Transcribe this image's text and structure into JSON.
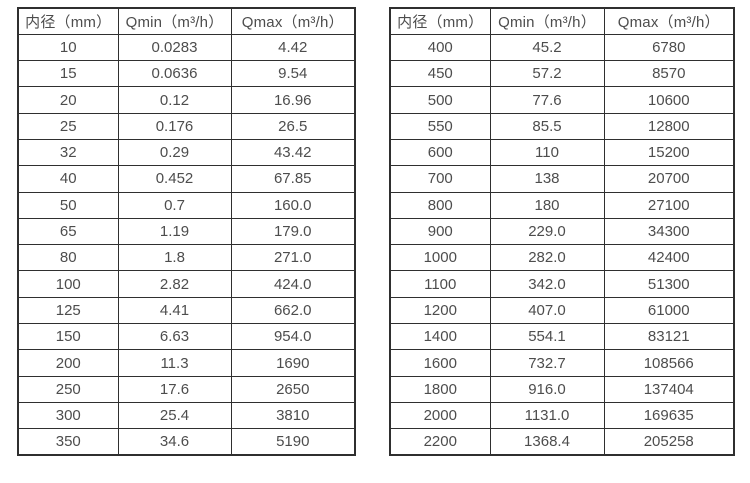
{
  "colors": {
    "background": "#ffffff",
    "table_border": "#2f2f2f",
    "text": "#4d4d4d"
  },
  "tables": [
    {
      "name": "flow-range-table-small-diameters",
      "headers": [
        "内径（mm）",
        "Qmin（m³/h）",
        "Qmax（m³/h）"
      ],
      "rows": [
        [
          "10",
          "0.0283",
          "4.42"
        ],
        [
          "15",
          "0.0636",
          "9.54"
        ],
        [
          "20",
          "0.12",
          "16.96"
        ],
        [
          "25",
          "0.176",
          "26.5"
        ],
        [
          "32",
          "0.29",
          "43.42"
        ],
        [
          "40",
          "0.452",
          "67.85"
        ],
        [
          "50",
          "0.7",
          "160.0"
        ],
        [
          "65",
          "1.19",
          "179.0"
        ],
        [
          "80",
          "1.8",
          "271.0"
        ],
        [
          "100",
          "2.82",
          "424.0"
        ],
        [
          "125",
          "4.41",
          "662.0"
        ],
        [
          "150",
          "6.63",
          "954.0"
        ],
        [
          "200",
          "11.3",
          "1690"
        ],
        [
          "250",
          "17.6",
          "2650"
        ],
        [
          "300",
          "25.4",
          "3810"
        ],
        [
          "350",
          "34.6",
          "5190"
        ]
      ]
    },
    {
      "name": "flow-range-table-large-diameters",
      "headers": [
        "内径（mm）",
        "Qmin（m³/h）",
        "Qmax（m³/h）"
      ],
      "rows": [
        [
          "400",
          "45.2",
          "6780"
        ],
        [
          "450",
          "57.2",
          "8570"
        ],
        [
          "500",
          "77.6",
          "10600"
        ],
        [
          "550",
          "85.5",
          "12800"
        ],
        [
          "600",
          "110",
          "15200"
        ],
        [
          "700",
          "138",
          "20700"
        ],
        [
          "800",
          "180",
          "27100"
        ],
        [
          "900",
          "229.0",
          "34300"
        ],
        [
          "1000",
          "282.0",
          "42400"
        ],
        [
          "1100",
          "342.0",
          "51300"
        ],
        [
          "1200",
          "407.0",
          "61000"
        ],
        [
          "1400",
          "554.1",
          "83121"
        ],
        [
          "1600",
          "732.7",
          "108566"
        ],
        [
          "1800",
          "916.0",
          "137404"
        ],
        [
          "2000",
          "1131.0",
          "169635"
        ],
        [
          "2200",
          "1368.4",
          "205258"
        ]
      ]
    }
  ]
}
